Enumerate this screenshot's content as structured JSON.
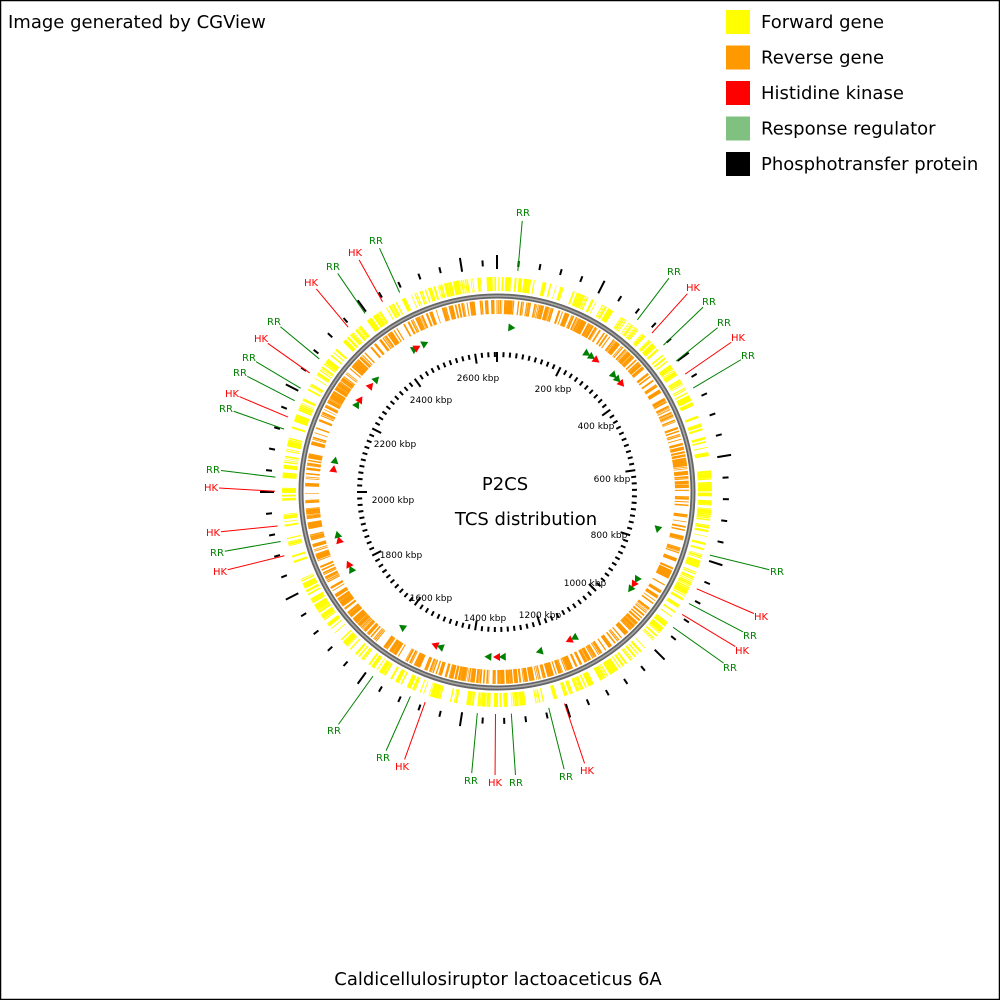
{
  "header": {
    "note": "Image generated by CGView"
  },
  "legend": [
    "Forward gene",
    "Reverse gene",
    "Histidine kinase",
    "Response regulator",
    "Phosphotransfer protein"
  ],
  "center": {
    "title": "P2CS",
    "subtitle": "TCS distribution"
  },
  "ruler_labels": [
    "2600 kbp",
    "200 kbp",
    "400 kbp",
    "600 kbp",
    "800 kbp",
    "1000 kbp",
    "1200 kbp",
    "1400 kbp",
    "1600 kbp",
    "1800 kbp",
    "2000 kbp",
    "2200 kbp",
    "2400 kbp"
  ],
  "feature_labels": [
    "RR",
    "RR",
    "HK",
    "RR",
    "RR",
    "HK",
    "RR",
    "RR",
    "HK",
    "RR",
    "HK",
    "RR",
    "RR",
    "HK",
    "RR",
    "HK",
    "RR",
    "HK",
    "RR",
    "RR",
    "HK",
    "RR",
    "HK",
    "HK",
    "RR",
    "RR",
    "HK",
    "RR",
    "RR",
    "HK",
    "RR",
    "HK",
    "RR",
    "HK",
    "RR"
  ],
  "footer": {
    "organism": "Caldicellulosiruptor lactoaceticus 6A"
  }
}
